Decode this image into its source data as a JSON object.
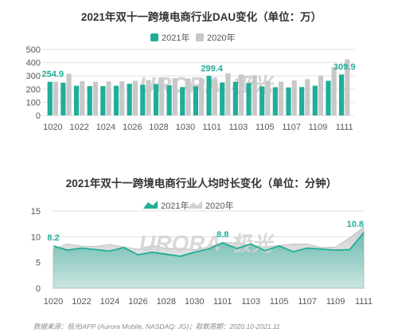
{
  "colors": {
    "y2021": "#1fae97",
    "y2020": "#c8c8c8",
    "grid": "#e2e2e2",
    "area2021": "#1fae97"
  },
  "watermark": {
    "brand": "URORA",
    "cn": "极光"
  },
  "source_text": "数据来源：极光iAPP (Aurora Mobile, NASDAQ: JG)；取数周期：2020.10-2021.11",
  "chart_data": [
    {
      "type": "bar",
      "title": "2021年双十一跨境电商行业DAU变化（单位：万）",
      "legend": [
        "2021年",
        "2020年"
      ],
      "legend_position": "top",
      "categories": [
        "1020",
        "1021",
        "1022",
        "1023",
        "1024",
        "1025",
        "1026",
        "1027",
        "1028",
        "1029",
        "1030",
        "1031",
        "1101",
        "1102",
        "1103",
        "1104",
        "1105",
        "1106",
        "1107",
        "1108",
        "1109",
        "1110",
        "1111"
      ],
      "xticks": [
        "1020",
        "1022",
        "1024",
        "1026",
        "1028",
        "1030",
        "1101",
        "1103",
        "1105",
        "1107",
        "1109",
        "1111"
      ],
      "yticks": [
        "0",
        "100",
        "200",
        "300",
        "400",
        "500"
      ],
      "ylim": [
        0,
        500
      ],
      "grid": true,
      "series": [
        {
          "name": "2021年",
          "values": [
            254.9,
            248,
            225,
            222,
            222,
            225,
            240,
            232,
            238,
            228,
            215,
            220,
            299.4,
            250,
            255,
            245,
            220,
            214,
            212,
            215,
            225,
            262,
            309.9
          ]
        },
        {
          "name": "2020年",
          "values": [
            255,
            315,
            260,
            255,
            258,
            258,
            262,
            268,
            278,
            282,
            280,
            275,
            272,
            318,
            310,
            305,
            262,
            255,
            265,
            275,
            302,
            365,
            425
          ]
        }
      ],
      "annotations": [
        {
          "index": 0,
          "text": "254.9"
        },
        {
          "index": 12,
          "text": "299.4"
        },
        {
          "index": 22,
          "text": "309.9"
        }
      ]
    },
    {
      "type": "area",
      "title": "2021年双十一跨境电商行业人均时长变化（单位：分钟）",
      "legend": [
        "2021年",
        "2020年"
      ],
      "legend_position": "top",
      "categories": [
        "1020",
        "1021",
        "1022",
        "1023",
        "1024",
        "1025",
        "1026",
        "1027",
        "1028",
        "1029",
        "1030",
        "1031",
        "1101",
        "1102",
        "1103",
        "1104",
        "1105",
        "1106",
        "1107",
        "1108",
        "1109",
        "1110",
        "1111"
      ],
      "xticks": [
        "1020",
        "1022",
        "1024",
        "1026",
        "1028",
        "1030",
        "1101",
        "1103",
        "1105",
        "1107",
        "1109",
        "1111"
      ],
      "yticks": [
        "0",
        "5",
        "10",
        "15"
      ],
      "ylim": [
        0,
        15
      ],
      "grid": true,
      "series": [
        {
          "name": "2021年",
          "values": [
            8.2,
            7.4,
            7.8,
            7.5,
            7.2,
            7.9,
            6.5,
            7.0,
            6.6,
            6.2,
            7.0,
            7.6,
            8.8,
            7.7,
            8.6,
            7.3,
            8.2,
            7.1,
            7.8,
            7.6,
            7.4,
            7.5,
            10.8
          ]
        },
        {
          "name": "2020年",
          "values": [
            7.6,
            8.6,
            8.2,
            8.1,
            8.5,
            8.0,
            7.6,
            8.3,
            7.7,
            7.7,
            7.5,
            8.0,
            8.9,
            8.8,
            8.4,
            8.0,
            8.3,
            8.6,
            8.6,
            7.9,
            8.0,
            9.8,
            11.9
          ]
        }
      ],
      "annotations": [
        {
          "index": 0,
          "text": "8.2"
        },
        {
          "index": 12,
          "text": "8.8"
        },
        {
          "index": 22,
          "text": "10.8"
        }
      ]
    }
  ]
}
